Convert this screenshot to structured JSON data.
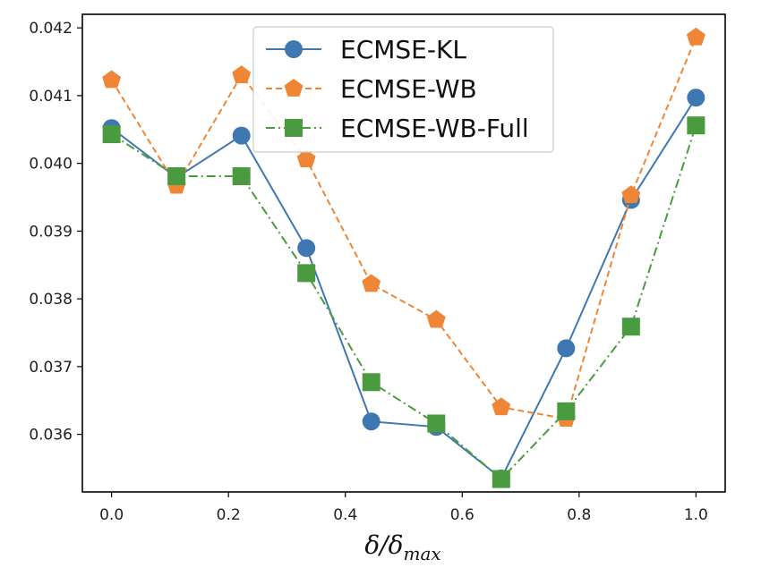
{
  "chart_data": {
    "type": "line",
    "title": "",
    "xlabel": "δ/δ",
    "xlabel_subscript": "max",
    "ylabel": "",
    "xlim": [
      -0.05,
      1.05
    ],
    "ylim": [
      0.03515,
      0.0422
    ],
    "x": [
      0.0,
      0.1111,
      0.2222,
      0.3333,
      0.4444,
      0.5556,
      0.6667,
      0.7778,
      0.8889,
      1.0
    ],
    "x_ticks": [
      0.0,
      0.2,
      0.4,
      0.6,
      0.8,
      1.0
    ],
    "x_tick_labels": [
      "0.0",
      "0.2",
      "0.4",
      "0.6",
      "0.8",
      "1.0"
    ],
    "y_ticks": [
      0.036,
      0.037,
      0.038,
      0.039,
      0.04,
      0.041,
      0.042
    ],
    "y_tick_labels": [
      "0.036",
      "0.037",
      "0.038",
      "0.039",
      "0.040",
      "0.041",
      "0.042"
    ],
    "grid": false,
    "legend_position": "top-center",
    "series": [
      {
        "name": "ECMSE-KL",
        "color": "#3f78b1",
        "marker": "circle",
        "linestyle": "solid",
        "values": [
          0.04052,
          0.03979,
          0.04041,
          0.03875,
          0.03619,
          0.03611,
          0.03535,
          0.03727,
          0.03946,
          0.04097
        ]
      },
      {
        "name": "ECMSE-WB",
        "color": "#ef8636",
        "marker": "pentagon",
        "linestyle": "dashed",
        "values": [
          0.04123,
          0.03967,
          0.0413,
          0.04006,
          0.03822,
          0.03769,
          0.0364,
          0.03623,
          0.03953,
          0.04186
        ]
      },
      {
        "name": "ECMSE-WB-Full",
        "color": "#4a9a3f",
        "marker": "square",
        "linestyle": "dashdot",
        "values": [
          0.04043,
          0.03981,
          0.03981,
          0.03838,
          0.03677,
          0.03616,
          0.03534,
          0.03634,
          0.03759,
          0.04056
        ]
      }
    ]
  }
}
